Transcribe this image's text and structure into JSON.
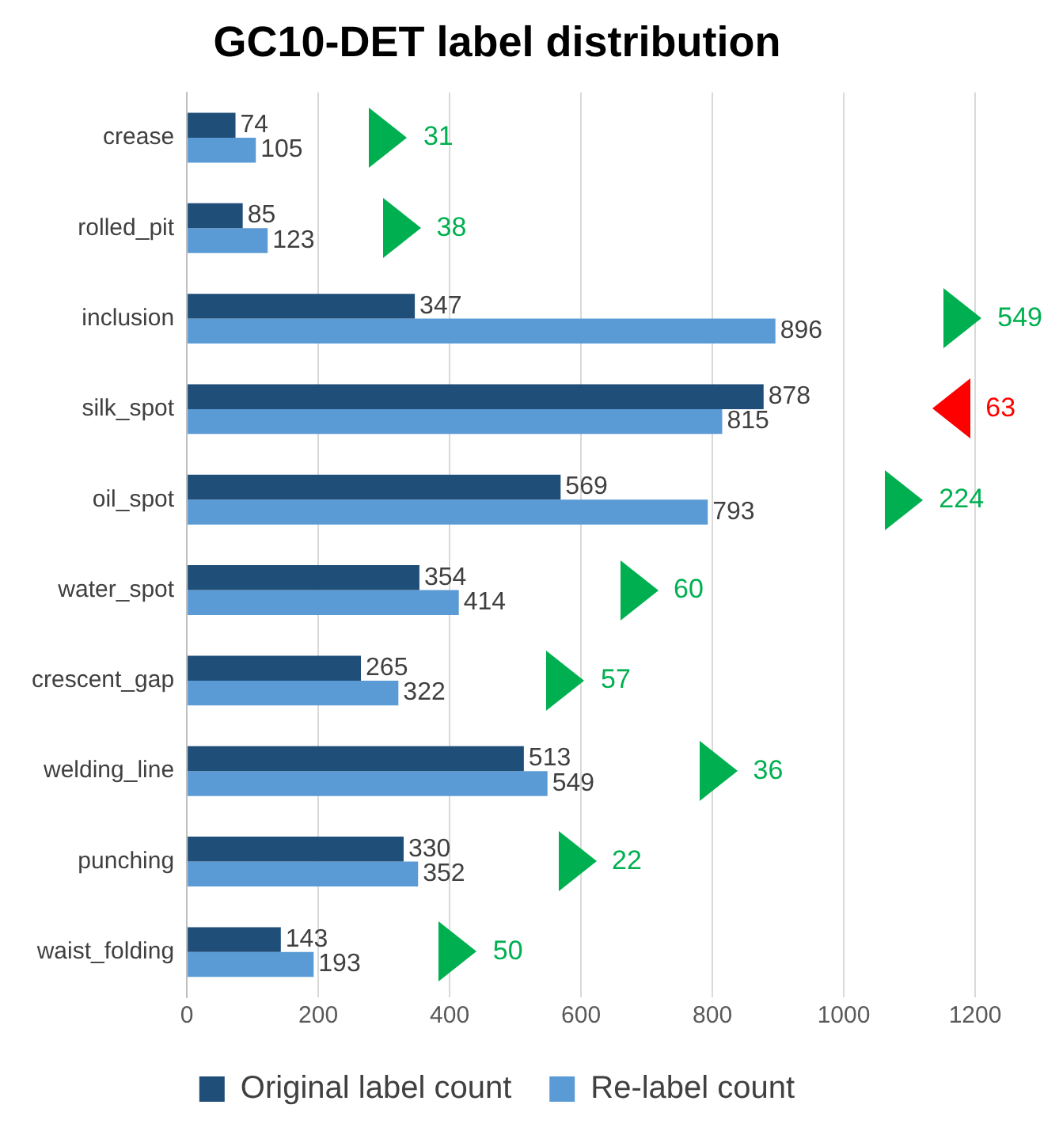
{
  "chart_data": {
    "type": "bar",
    "orientation": "horizontal",
    "title": "GC10-DET label distribution",
    "categories": [
      "crease",
      "rolled_pit",
      "inclusion",
      "silk_spot",
      "oil_spot",
      "water_spot",
      "crescent_gap",
      "welding_line",
      "punching",
      "waist_folding"
    ],
    "series": [
      {
        "name": "Original label count",
        "color": "#1f4e79",
        "values": [
          74,
          85,
          347,
          878,
          569,
          354,
          265,
          513,
          330,
          143
        ]
      },
      {
        "name": "Re-label count",
        "color": "#5b9bd5",
        "values": [
          105,
          123,
          896,
          815,
          793,
          414,
          322,
          549,
          352,
          193
        ]
      }
    ],
    "xlim": [
      0,
      1200
    ],
    "xticks": [
      0,
      200,
      400,
      600,
      800,
      1000,
      1200
    ],
    "grid": "x",
    "legend": "bottom",
    "data_labels": true,
    "annotations": [
      {
        "text": "31",
        "x": 307,
        "y": "crease"
      },
      {
        "text": "38",
        "x": 327,
        "y": "rolled_pit"
      },
      {
        "text": "549",
        "x": 1181,
        "y": "inclusion"
      },
      {
        "text": "63",
        "x": 1163,
        "y": "silk_spot"
      },
      {
        "text": "224",
        "x": 1092,
        "y": "oil_spot"
      },
      {
        "text": "60",
        "x": 688,
        "y": "water_spot"
      },
      {
        "text": "57",
        "x": 577,
        "y": "crescent_gap"
      },
      {
        "text": "36",
        "x": 809,
        "y": "welding_line"
      },
      {
        "text": "22",
        "x": 594,
        "y": "punching"
      },
      {
        "text": "50",
        "x": 413,
        "y": "waist_folding"
      }
    ]
  }
}
